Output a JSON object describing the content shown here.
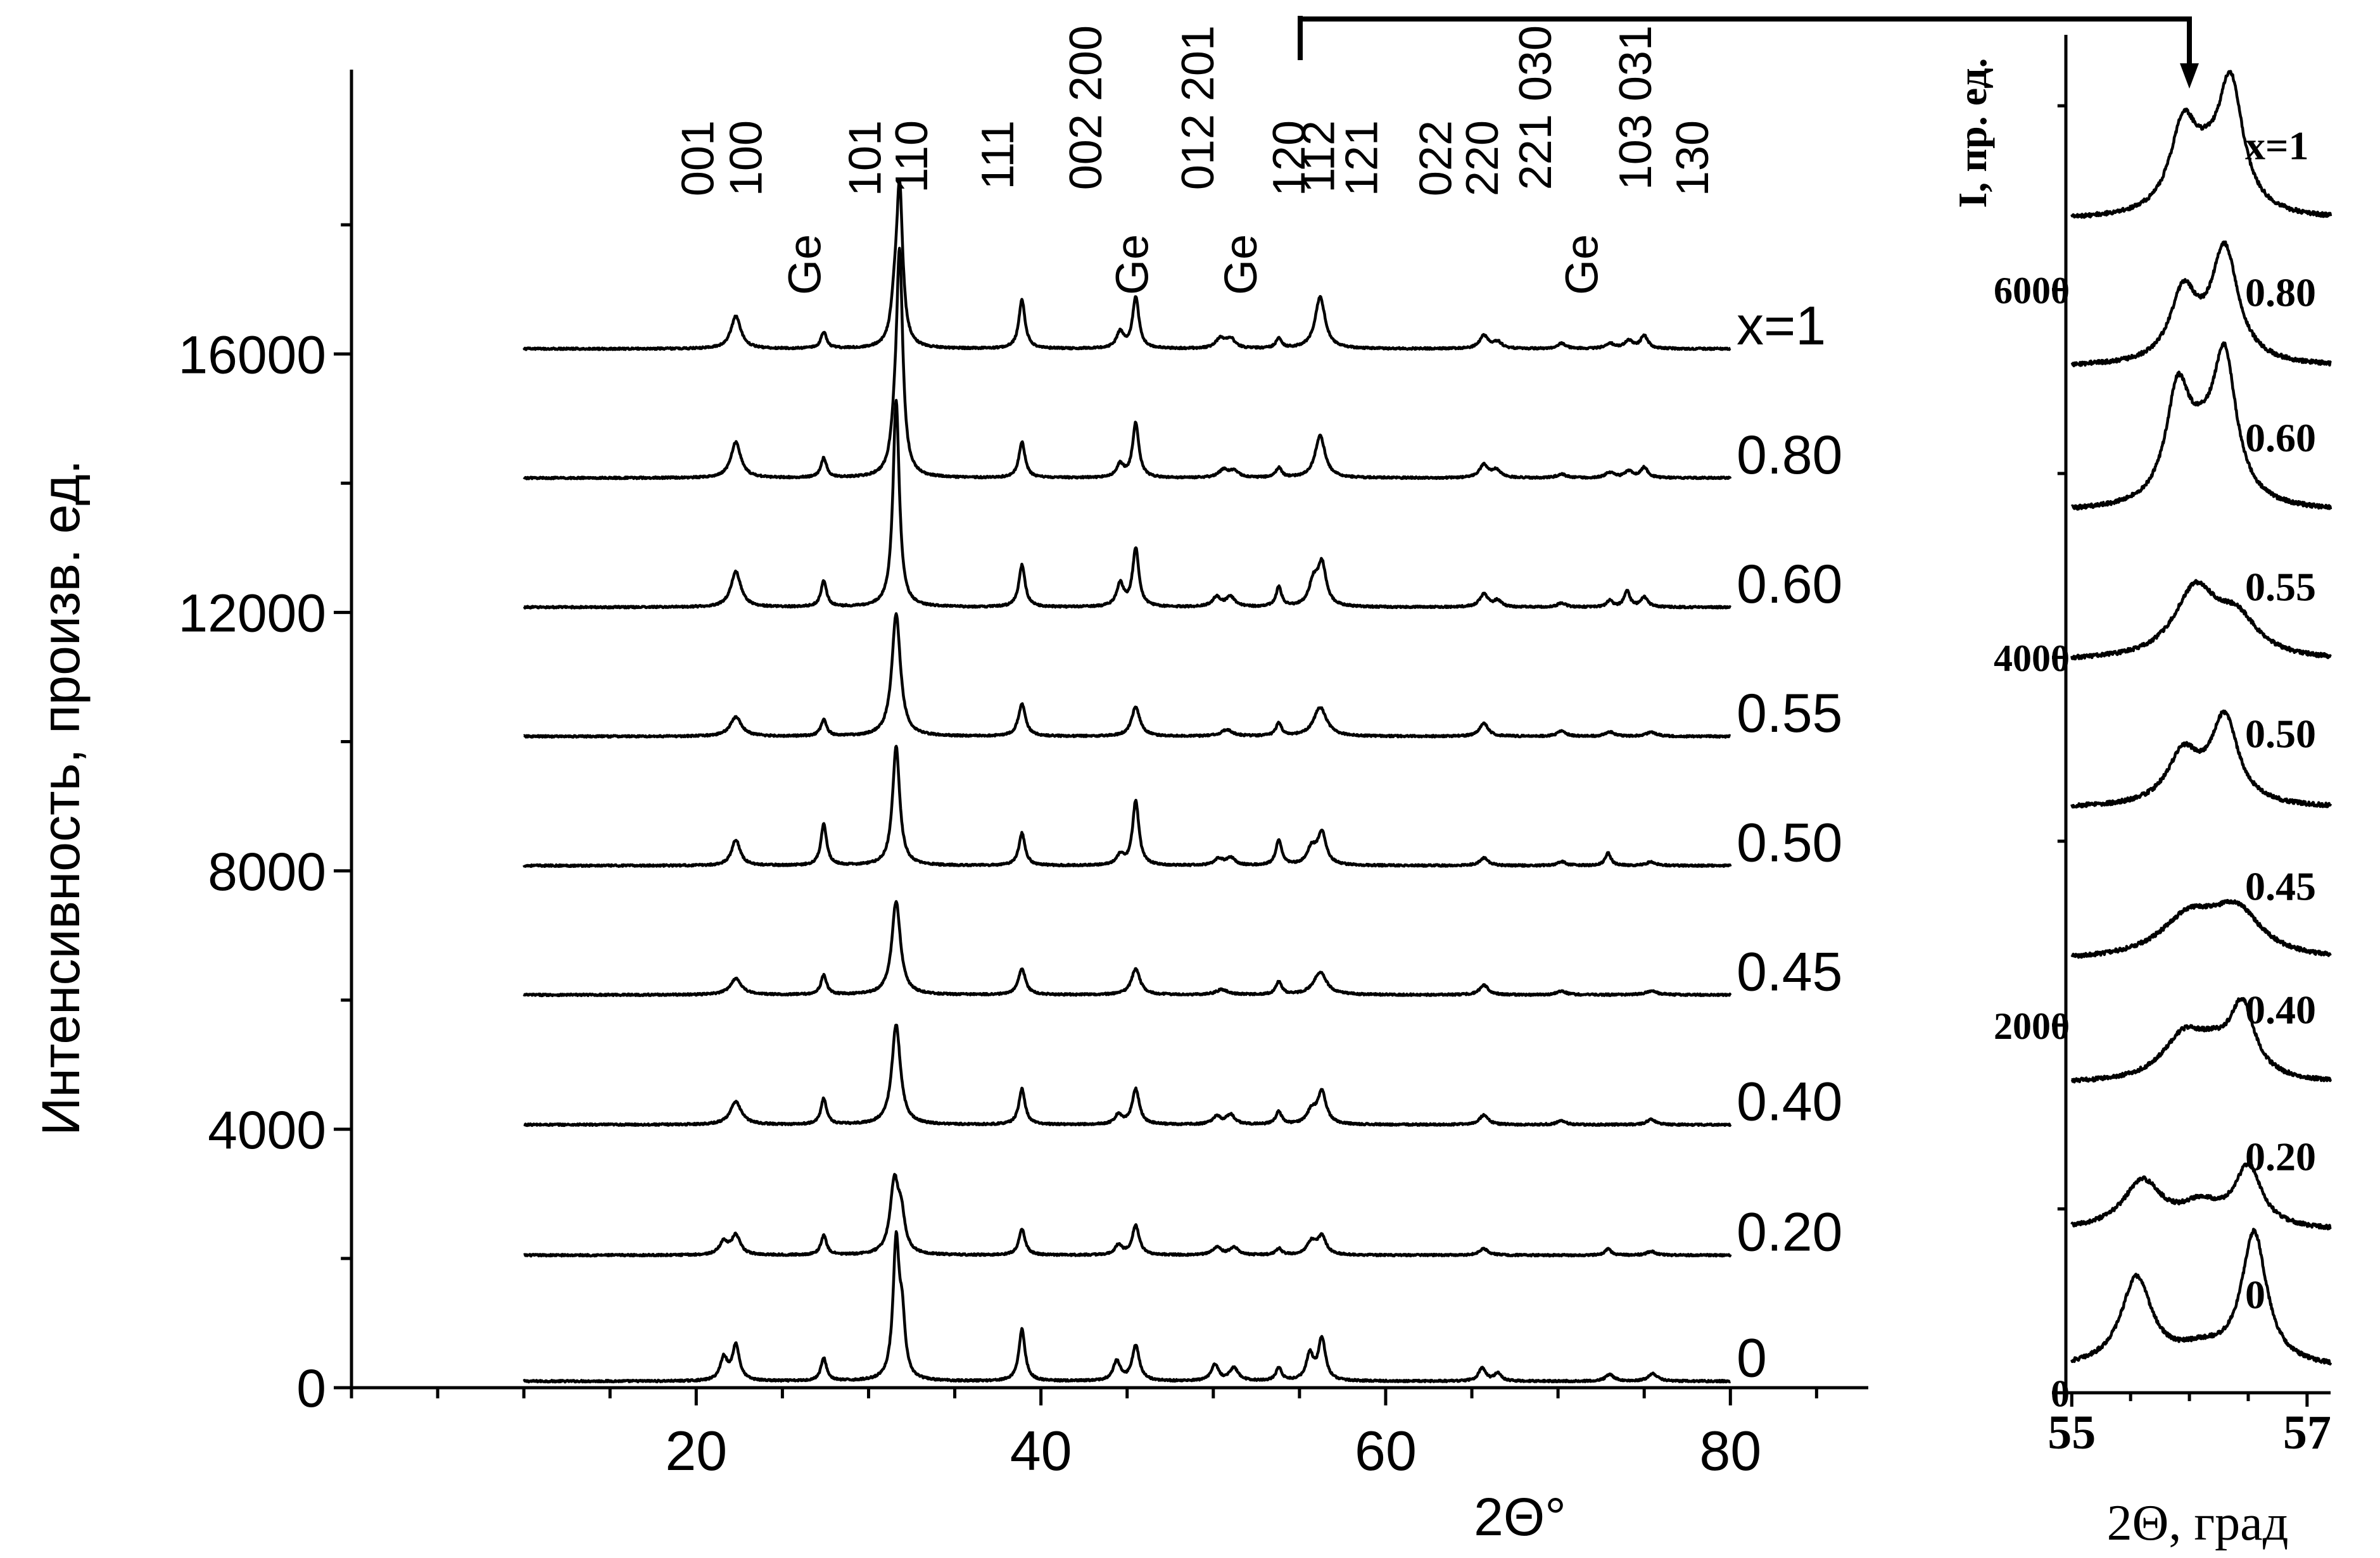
{
  "chart_data": [
    {
      "type": "line",
      "ylabel": "Интенсивность, произв. ед.",
      "xlabel": "2Θ°",
      "xlim": [
        0,
        88
      ],
      "ylim": [
        0,
        19500
      ],
      "xticks": [
        20,
        40,
        60,
        80
      ],
      "yticks": [
        0,
        4000,
        8000,
        12000,
        16000
      ],
      "x_range": [
        10,
        80
      ],
      "series": [
        {
          "name": "0",
          "offset": 100,
          "peaks": [
            [
              21.6,
              350,
              0.25
            ],
            [
              22.3,
              550,
              0.25
            ],
            [
              27.4,
              350,
              0.2
            ],
            [
              31.6,
              2100,
              0.22
            ],
            [
              31.95,
              800,
              0.2
            ],
            [
              38.9,
              800,
              0.22
            ],
            [
              44.4,
              300,
              0.25
            ],
            [
              45.5,
              550,
              0.25
            ],
            [
              50.1,
              250,
              0.25
            ],
            [
              51.2,
              200,
              0.3
            ],
            [
              53.8,
              200,
              0.2
            ],
            [
              55.6,
              400,
              0.25
            ],
            [
              56.3,
              650,
              0.25
            ],
            [
              65.6,
              200,
              0.25
            ],
            [
              66.5,
              120,
              0.25
            ],
            [
              73.0,
              100,
              0.3
            ],
            [
              75.5,
              120,
              0.3
            ]
          ]
        },
        {
          "name": "0.20",
          "offset": 2050,
          "peaks": [
            [
              21.6,
              200,
              0.3
            ],
            [
              22.3,
              300,
              0.3
            ],
            [
              27.4,
              300,
              0.2
            ],
            [
              31.5,
              1100,
              0.3
            ],
            [
              31.9,
              500,
              0.25
            ],
            [
              38.9,
              400,
              0.22
            ],
            [
              44.5,
              150,
              0.25
            ],
            [
              45.5,
              450,
              0.25
            ],
            [
              50.2,
              120,
              0.3
            ],
            [
              51.2,
              120,
              0.3
            ],
            [
              53.8,
              100,
              0.2
            ],
            [
              55.7,
              200,
              0.3
            ],
            [
              56.3,
              280,
              0.3
            ],
            [
              65.7,
              100,
              0.3
            ],
            [
              72.9,
              100,
              0.2
            ],
            [
              75.4,
              60,
              0.3
            ]
          ]
        },
        {
          "name": "0.40",
          "offset": 4070,
          "peaks": [
            [
              22.3,
              350,
              0.4
            ],
            [
              27.4,
              400,
              0.2
            ],
            [
              31.6,
              1550,
              0.3
            ],
            [
              38.9,
              550,
              0.22
            ],
            [
              44.5,
              150,
              0.25
            ],
            [
              45.5,
              550,
              0.25
            ],
            [
              50.2,
              120,
              0.3
            ],
            [
              51.0,
              150,
              0.3
            ],
            [
              53.8,
              200,
              0.2
            ],
            [
              55.7,
              200,
              0.3
            ],
            [
              56.3,
              500,
              0.3
            ],
            [
              65.7,
              150,
              0.3
            ],
            [
              70.2,
              60,
              0.3
            ],
            [
              75.4,
              80,
              0.3
            ]
          ]
        },
        {
          "name": "0.45",
          "offset": 6080,
          "peaks": [
            [
              22.3,
              250,
              0.4
            ],
            [
              27.4,
              300,
              0.2
            ],
            [
              31.6,
              1450,
              0.3
            ],
            [
              38.9,
              400,
              0.25
            ],
            [
              45.5,
              400,
              0.3
            ],
            [
              50.5,
              80,
              0.4
            ],
            [
              53.8,
              200,
              0.2
            ],
            [
              56.2,
              350,
              0.45
            ],
            [
              65.7,
              150,
              0.3
            ],
            [
              70.2,
              60,
              0.3
            ],
            [
              75.4,
              60,
              0.4
            ]
          ]
        },
        {
          "name": "0.50",
          "offset": 8080,
          "peaks": [
            [
              22.3,
              400,
              0.3
            ],
            [
              27.4,
              650,
              0.2
            ],
            [
              31.6,
              1850,
              0.25
            ],
            [
              38.9,
              500,
              0.22
            ],
            [
              44.6,
              150,
              0.25
            ],
            [
              45.5,
              1000,
              0.22
            ],
            [
              50.3,
              100,
              0.3
            ],
            [
              51.0,
              120,
              0.3
            ],
            [
              53.8,
              400,
              0.2
            ],
            [
              55.7,
              250,
              0.3
            ],
            [
              56.3,
              500,
              0.3
            ],
            [
              65.7,
              120,
              0.3
            ],
            [
              70.2,
              60,
              0.3
            ],
            [
              72.9,
              200,
              0.2
            ],
            [
              75.4,
              60,
              0.3
            ]
          ]
        },
        {
          "name": "0.55",
          "offset": 10080,
          "peaks": [
            [
              22.3,
              300,
              0.4
            ],
            [
              27.4,
              250,
              0.2
            ],
            [
              31.6,
              1900,
              0.3
            ],
            [
              38.9,
              500,
              0.25
            ],
            [
              45.5,
              450,
              0.3
            ],
            [
              50.8,
              100,
              0.4
            ],
            [
              53.8,
              200,
              0.2
            ],
            [
              56.2,
              450,
              0.45
            ],
            [
              65.7,
              200,
              0.3
            ],
            [
              70.2,
              80,
              0.3
            ],
            [
              73.0,
              70,
              0.3
            ],
            [
              75.4,
              60,
              0.4
            ]
          ]
        },
        {
          "name": "0.60",
          "offset": 12080,
          "peaks": [
            [
              22.3,
              550,
              0.35
            ],
            [
              27.4,
              400,
              0.2
            ],
            [
              31.6,
              3200,
              0.22
            ],
            [
              38.9,
              650,
              0.22
            ],
            [
              44.6,
              350,
              0.25
            ],
            [
              45.5,
              900,
              0.22
            ],
            [
              50.2,
              150,
              0.3
            ],
            [
              51.0,
              150,
              0.3
            ],
            [
              53.8,
              300,
              0.2
            ],
            [
              55.8,
              350,
              0.3
            ],
            [
              56.3,
              650,
              0.3
            ],
            [
              65.7,
              200,
              0.3
            ],
            [
              66.5,
              100,
              0.25
            ],
            [
              70.2,
              60,
              0.3
            ],
            [
              73.0,
              100,
              0.2
            ],
            [
              74.0,
              250,
              0.2
            ],
            [
              75.0,
              150,
              0.25
            ]
          ]
        },
        {
          "name": "0.80",
          "offset": 14080,
          "peaks": [
            [
              22.3,
              550,
              0.35
            ],
            [
              27.4,
              300,
              0.2
            ],
            [
              31.5,
              400,
              0.25
            ],
            [
              31.8,
              3400,
              0.22
            ],
            [
              38.9,
              550,
              0.22
            ],
            [
              44.6,
              200,
              0.25
            ],
            [
              45.5,
              850,
              0.22
            ],
            [
              50.6,
              120,
              0.35
            ],
            [
              51.2,
              100,
              0.3
            ],
            [
              53.8,
              150,
              0.2
            ],
            [
              56.2,
              650,
              0.35
            ],
            [
              65.7,
              200,
              0.3
            ],
            [
              66.4,
              120,
              0.3
            ],
            [
              70.2,
              60,
              0.3
            ],
            [
              73.0,
              80,
              0.3
            ],
            [
              74.1,
              100,
              0.3
            ],
            [
              75.0,
              160,
              0.25
            ]
          ]
        },
        {
          "name": "x=1",
          "offset": 16080,
          "peaks": [
            [
              22.3,
              500,
              0.35
            ],
            [
              27.4,
              250,
              0.2
            ],
            [
              31.5,
              500,
              0.25
            ],
            [
              31.8,
              2400,
              0.22
            ],
            [
              38.9,
              750,
              0.22
            ],
            [
              44.6,
              250,
              0.25
            ],
            [
              45.5,
              800,
              0.22
            ],
            [
              50.4,
              150,
              0.3
            ],
            [
              51.0,
              150,
              0.3
            ],
            [
              53.8,
              150,
              0.2
            ],
            [
              56.2,
              800,
              0.35
            ],
            [
              65.7,
              200,
              0.3
            ],
            [
              66.5,
              100,
              0.3
            ],
            [
              70.2,
              80,
              0.3
            ],
            [
              73.0,
              80,
              0.3
            ],
            [
              74.1,
              120,
              0.3
            ],
            [
              75.0,
              200,
              0.25
            ]
          ]
        }
      ],
      "annotations": [
        {
          "text": "001",
          "x": 21.0
        },
        {
          "text": "100",
          "x": 23.8
        },
        {
          "text": "Ge",
          "x": 27.2
        },
        {
          "text": "101",
          "x": 30.7
        },
        {
          "text": "110",
          "x": 33.4
        },
        {
          "text": "111",
          "x": 38.4
        },
        {
          "text": "002 200",
          "x": 43.5
        },
        {
          "text": "Ge",
          "x": 46.2
        },
        {
          "text": "012 201",
          "x": 50.0
        },
        {
          "text": "Ge",
          "x": 52.5
        },
        {
          "text": "120",
          "x": 55.3
        },
        {
          "text": "112",
          "x": 57.0
        },
        {
          "text": "121",
          "x": 59.5
        },
        {
          "text": "022",
          "x": 63.8
        },
        {
          "text": "220",
          "x": 66.5
        },
        {
          "text": "221 030",
          "x": 69.6
        },
        {
          "text": "Ge",
          "x": 72.3
        },
        {
          "text": "103 031",
          "x": 75.4
        },
        {
          "text": "130",
          "x": 78.7
        }
      ]
    },
    {
      "type": "line",
      "ylabel": "I, пр. ед.",
      "xlabel": "2Θ, град",
      "xlim": [
        54.95,
        57.2
      ],
      "ylim": [
        0,
        7300
      ],
      "xticks": [
        55,
        57
      ],
      "xtick_labels": [
        "55",
        "57"
      ],
      "yticks": [
        0,
        2000,
        4000,
        6000
      ],
      "x_range": [
        55.0,
        57.2
      ],
      "series": [
        {
          "name": "0",
          "offset": 130,
          "peaks": [
            [
              55.55,
              480,
              0.16
            ],
            [
              56.1,
              80,
              0.25
            ],
            [
              56.55,
              720,
              0.13
            ]
          ]
        },
        {
          "name": "0.20",
          "offset": 880,
          "peaks": [
            [
              55.6,
              260,
              0.2
            ],
            [
              56.1,
              120,
              0.2
            ],
            [
              56.5,
              330,
              0.14
            ]
          ]
        },
        {
          "name": "0.40",
          "offset": 1680,
          "peaks": [
            [
              55.95,
              230,
              0.22
            ],
            [
              56.45,
              380,
              0.13
            ],
            [
              56.2,
              120,
              0.2
            ]
          ]
        },
        {
          "name": "0.45",
          "offset": 2350,
          "peaks": [
            [
              56.0,
              220,
              0.3
            ],
            [
              56.4,
              240,
              0.25
            ]
          ]
        },
        {
          "name": "0.50",
          "offset": 3180,
          "peaks": [
            [
              55.95,
              280,
              0.17
            ],
            [
              56.3,
              470,
              0.14
            ]
          ]
        },
        {
          "name": "0.55",
          "offset": 3980,
          "peaks": [
            [
              56.05,
              370,
              0.22
            ],
            [
              56.4,
              200,
              0.22
            ]
          ]
        },
        {
          "name": "0.60",
          "offset": 4790,
          "peaks": [
            [
              55.9,
              560,
              0.12
            ],
            [
              56.3,
              740,
              0.12
            ],
            [
              56.1,
              250,
              0.2
            ]
          ]
        },
        {
          "name": "0.80",
          "offset": 5580,
          "peaks": [
            [
              55.95,
              380,
              0.14
            ],
            [
              56.3,
              620,
              0.14
            ]
          ]
        },
        {
          "name": "x=1",
          "offset": 6380,
          "peaks": [
            [
              55.95,
              470,
              0.14
            ],
            [
              56.35,
              700,
              0.13
            ],
            [
              56.15,
              150,
              0.15
            ]
          ]
        }
      ]
    }
  ]
}
